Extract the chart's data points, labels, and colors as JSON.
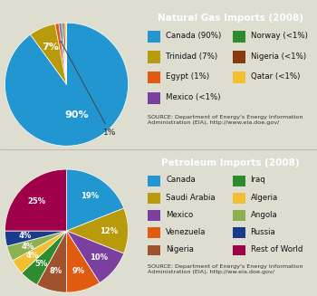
{
  "ng_title": "Natural Gas Imports (2008)",
  "ng_values": [
    90,
    7,
    1,
    0.6,
    0.5,
    0.5,
    0.4
  ],
  "ng_colors": [
    "#2196d0",
    "#b89a0a",
    "#e05a10",
    "#7b3fa0",
    "#2e8b2e",
    "#8b3a10",
    "#f0c030"
  ],
  "ng_pct_labels": [
    "90%",
    "7%",
    "",
    "",
    "",
    "",
    ""
  ],
  "ng_legend": [
    [
      "Canada (90%)",
      "#2196d0",
      "Norway (<1%)",
      "#2e8b2e"
    ],
    [
      "Trinidad (7%)",
      "#b89a0a",
      "Nigeria (<1%)",
      "#8b3a10"
    ],
    [
      "Egypt (1%)",
      "#e05a10",
      "Qatar (<1%)",
      "#f0c030"
    ],
    [
      "Mexico (<1%)",
      "#7b3fa0",
      "",
      ""
    ]
  ],
  "pet_title": "Petroleum Imports (2008)",
  "pet_values": [
    19,
    12,
    10,
    9,
    8,
    5,
    4,
    4,
    4,
    25
  ],
  "pet_colors": [
    "#2196d0",
    "#b89a0a",
    "#7b3fa0",
    "#e05a10",
    "#a0522d",
    "#2e8b2e",
    "#f0c030",
    "#8db050",
    "#1a3a8a",
    "#a0004a"
  ],
  "pet_pct_labels": [
    "19%",
    "12%",
    "10%",
    "9%",
    "8%",
    "5%",
    "4%",
    "4%",
    "4%",
    "25%"
  ],
  "pet_legend": [
    [
      "Canada",
      "#2196d0",
      "Iraq",
      "#2e8b2e"
    ],
    [
      "Saudi Arabia",
      "#b89a0a",
      "Algeria",
      "#f0c030"
    ],
    [
      "Mexico",
      "#7b3fa0",
      "Angola",
      "#8db050"
    ],
    [
      "Venezuela",
      "#e05a10",
      "Russia",
      "#1a3a8a"
    ],
    [
      "Nigeria",
      "#a0522d",
      "Rest of World",
      "#a0004a"
    ]
  ],
  "title_bg_color": "#1a3a6e",
  "title_text_color": "#ffffff",
  "source_text_ng": "SOURCE: Department of Energy's Energy Information\nAdministration (EIA), http://www.eia.doe.gov/",
  "source_text_pet": "SOURCE: Department of Energy's Energy Information\nAdministration (EIA), http://ww.eia.doe.gov/",
  "bg_color": "#ddddd0"
}
